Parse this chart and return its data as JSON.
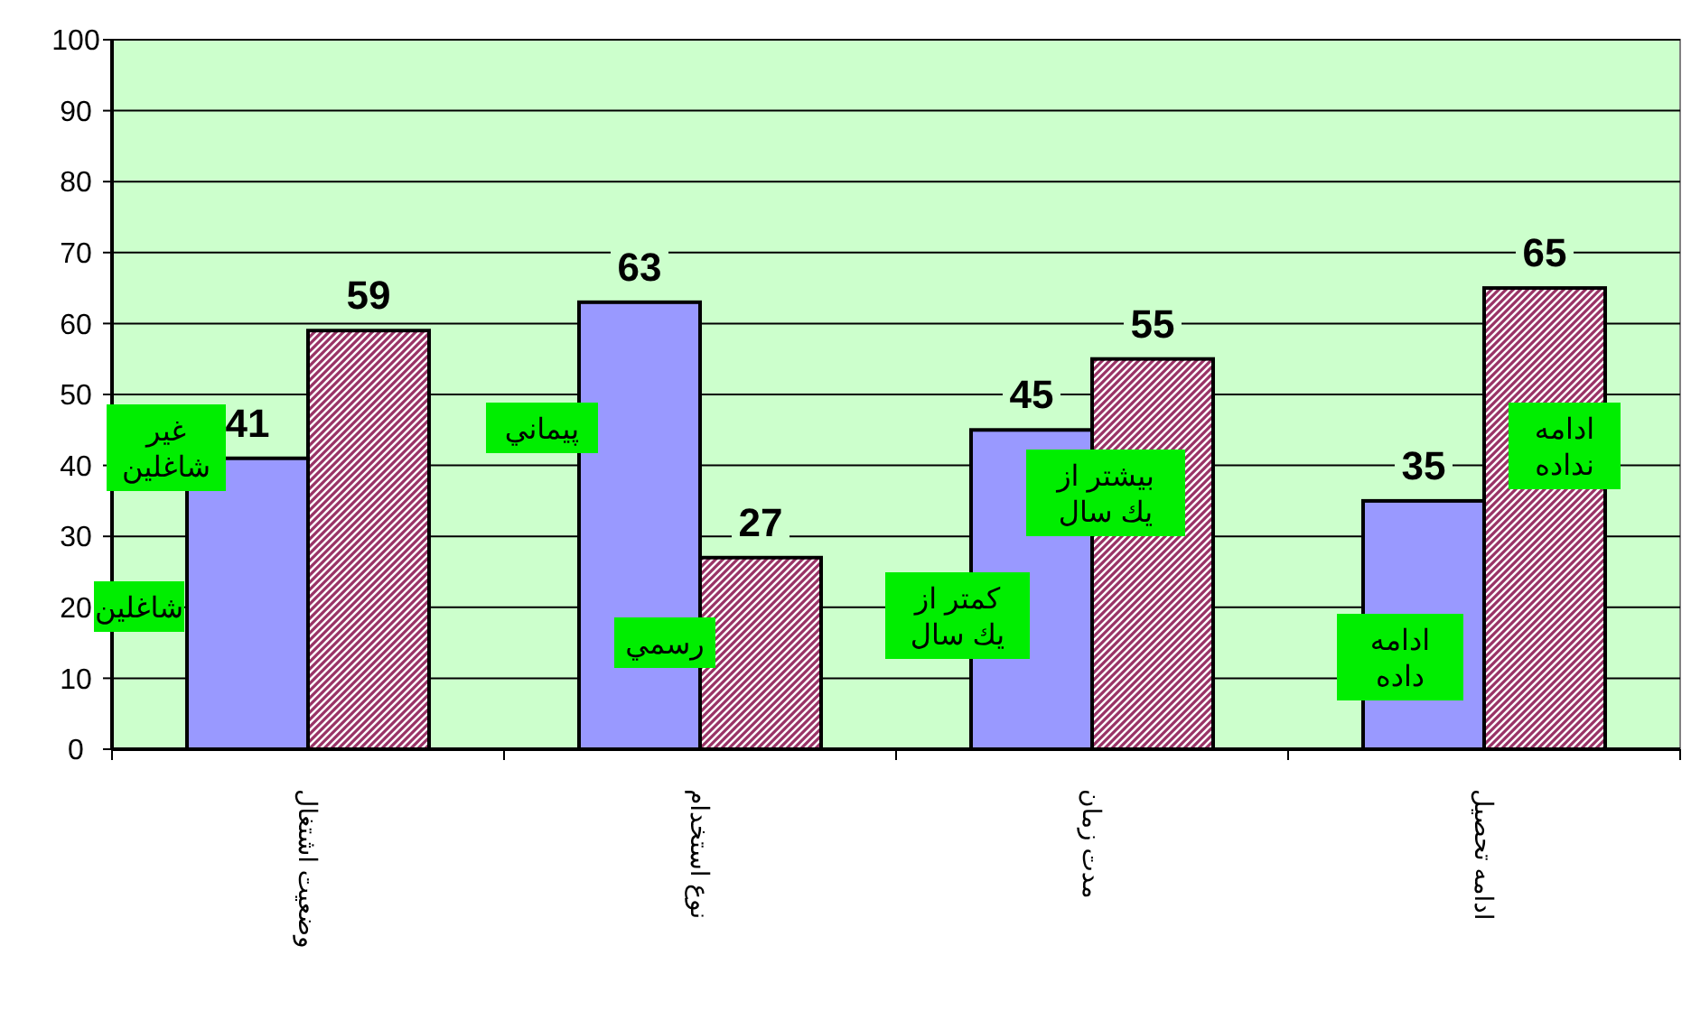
{
  "chart_data": {
    "type": "bar",
    "categories": [
      "وضعیت اشتغال",
      "نوع استخدام",
      "مدت زمان",
      "ادامه تحصیل"
    ],
    "series": [
      {
        "color": "#9999ff",
        "values": [
          41,
          63,
          45,
          35
        ]
      },
      {
        "color": "#993366",
        "values": [
          59,
          27,
          55,
          65
        ]
      }
    ],
    "ylim": [
      0,
      100
    ],
    "yticks": [
      0,
      10,
      20,
      30,
      40,
      50,
      60,
      70,
      80,
      90,
      100
    ],
    "grid": "y",
    "data_labels": true,
    "annotations": [
      "غير\nشاغلين",
      "شاغلين",
      "پيماني",
      "رسمي",
      "كمتر از\nيك سال",
      "بيشتر از\nيك سال",
      "ادامه\nداده",
      "ادامه\nنداده"
    ]
  }
}
